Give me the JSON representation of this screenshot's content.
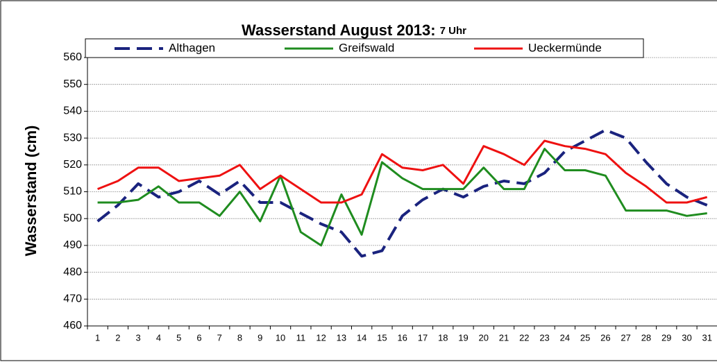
{
  "chart_data": {
    "type": "line",
    "title": "Wasserstand August 2013:",
    "subtitle": "7 Uhr",
    "y_label": "Wasserstand (cm)",
    "categories": [
      "1",
      "2",
      "3",
      "4",
      "5",
      "6",
      "7",
      "8",
      "9",
      "10",
      "11",
      "12",
      "13",
      "14",
      "15",
      "16",
      "17",
      "18",
      "19",
      "20",
      "21",
      "22",
      "23",
      "24",
      "25",
      "26",
      "27",
      "28",
      "29",
      "30",
      "31"
    ],
    "series": [
      {
        "name": "Althagen",
        "color": "#1a237e",
        "dashed": true,
        "values": [
          499,
          505,
          513,
          508,
          510,
          514,
          509,
          514,
          506,
          506,
          502,
          498,
          495,
          486,
          488,
          501,
          507,
          511,
          508,
          512,
          514,
          513,
          517,
          525,
          529,
          533,
          530,
          521,
          513,
          508,
          505
        ]
      },
      {
        "name": "Greifswald",
        "color": "#1f8c1f",
        "values": [
          506,
          506,
          507,
          512,
          506,
          506,
          501,
          510,
          499,
          516,
          495,
          490,
          509,
          494,
          521,
          515,
          511,
          511,
          511,
          519,
          511,
          511,
          526,
          518,
          518,
          516,
          503,
          503,
          503,
          501,
          502
        ]
      },
      {
        "name": "Ueckermünde",
        "color": "#ee1111",
        "values": [
          511,
          514,
          519,
          519,
          514,
          515,
          516,
          520,
          511,
          516,
          511,
          506,
          506,
          509,
          524,
          519,
          518,
          520,
          513,
          527,
          524,
          520,
          529,
          527,
          526,
          524,
          517,
          512,
          506,
          506,
          508
        ]
      }
    ],
    "ylim": [
      460,
      560
    ],
    "yticks": [
      460,
      470,
      480,
      490,
      500,
      510,
      520,
      530,
      540,
      550,
      560
    ],
    "grid": true,
    "legend": "top"
  }
}
